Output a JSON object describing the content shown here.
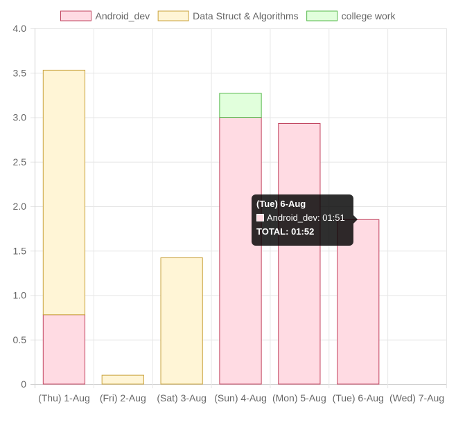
{
  "chart_data": {
    "type": "bar",
    "stacked": true,
    "categories": [
      "(Thu) 1-Aug",
      "(Fri) 2-Aug",
      "(Sat) 3-Aug",
      "(Sun) 4-Aug",
      "(Mon) 5-Aug",
      "(Tue) 6-Aug",
      "(Wed) 7-Aug"
    ],
    "series": [
      {
        "name": "Android_dev",
        "values": [
          0.78,
          0,
          0,
          3.0,
          2.93,
          1.85,
          0
        ],
        "fill": "#ffdbe3",
        "stroke": "#c2435f"
      },
      {
        "name": "Data Struct & Algorithms",
        "values": [
          2.75,
          0.1,
          1.42,
          0,
          0,
          0,
          0
        ],
        "fill": "#fff5d6",
        "stroke": "#c9a23c"
      },
      {
        "name": "college work",
        "values": [
          0,
          0,
          0,
          0.27,
          0,
          0,
          0
        ],
        "fill": "#e1ffdc",
        "stroke": "#55b84a"
      }
    ],
    "ylim": [
      0,
      4.0
    ],
    "yticks": [
      "0",
      "0.5",
      "1.0",
      "1.5",
      "2.0",
      "2.5",
      "3.0",
      "3.5",
      "4.0"
    ],
    "grid": true,
    "legend": "top",
    "xlabel": "",
    "ylabel": ""
  },
  "tooltip": {
    "title": "(Tue) 6-Aug",
    "line": "Android_dev: 01:51",
    "total": "TOTAL: 01:52"
  }
}
